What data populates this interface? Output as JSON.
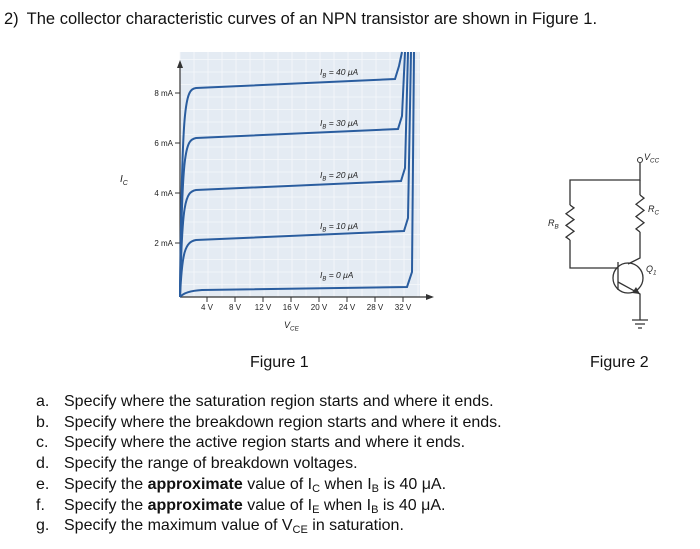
{
  "question": {
    "number": "2)",
    "text": "The collector characteristic curves of an NPN transistor are shown in Figure 1."
  },
  "figure1": {
    "caption": "Figure 1",
    "y_axis_label": {
      "main": "I",
      "sub": "C"
    },
    "x_axis_label": {
      "main": "V",
      "sub": "CE"
    },
    "y_ticks": [
      "2 mA",
      "4 mA",
      "6 mA",
      "8 mA"
    ],
    "x_ticks": [
      "4 V",
      "8 V",
      "12 V",
      "16 V",
      "20 V",
      "24 V",
      "28 V",
      "32 V"
    ],
    "curves": [
      {
        "main": "I",
        "sub": "B",
        "rest": " = 40 μA"
      },
      {
        "main": "I",
        "sub": "B",
        "rest": " = 30 μA"
      },
      {
        "main": "I",
        "sub": "B",
        "rest": " = 20 μA"
      },
      {
        "main": "I",
        "sub": "B",
        "rest": " = 10 μA"
      },
      {
        "main": "I",
        "sub": "B",
        "rest": " = 0 μA"
      }
    ]
  },
  "figure2": {
    "caption": "Figure 2",
    "vcc": {
      "main": "V",
      "sub": "CC"
    },
    "rb": {
      "main": "R",
      "sub": "B"
    },
    "rc": {
      "main": "R",
      "sub": "C"
    },
    "q": {
      "main": "Q",
      "sub": "1"
    }
  },
  "items": [
    {
      "letter": "a.",
      "parts": [
        {
          "text": "Specify where the saturation region starts and where it ends."
        }
      ]
    },
    {
      "letter": "b.",
      "parts": [
        {
          "text": "Specify where the breakdown region starts and where it ends."
        }
      ]
    },
    {
      "letter": "c.",
      "parts": [
        {
          "text": "Specify where the active region starts and where it ends."
        }
      ]
    },
    {
      "letter": "d.",
      "parts": [
        {
          "text": "Specify the range of breakdown voltages."
        }
      ]
    },
    {
      "letter": "e.",
      "parts": [
        {
          "text": "Specify the "
        },
        {
          "text": "approximate",
          "style": "bold"
        },
        {
          "text": " value of I"
        },
        {
          "text": "C",
          "style": "sub"
        },
        {
          "text": " when I"
        },
        {
          "text": "B",
          "style": "sub"
        },
        {
          "text": " is 40 μA."
        }
      ]
    },
    {
      "letter": "f.",
      "parts": [
        {
          "text": "Specify the "
        },
        {
          "text": "approximate",
          "style": "bold"
        },
        {
          "text": " value of I"
        },
        {
          "text": "E",
          "style": "sub"
        },
        {
          "text": " when I"
        },
        {
          "text": "B",
          "style": "sub"
        },
        {
          "text": " is 40 μA."
        }
      ]
    },
    {
      "letter": "g.",
      "parts": [
        {
          "text": "Specify the maximum value of V"
        },
        {
          "text": "CE",
          "style": "sub"
        },
        {
          "text": " in saturation."
        }
      ]
    }
  ]
}
